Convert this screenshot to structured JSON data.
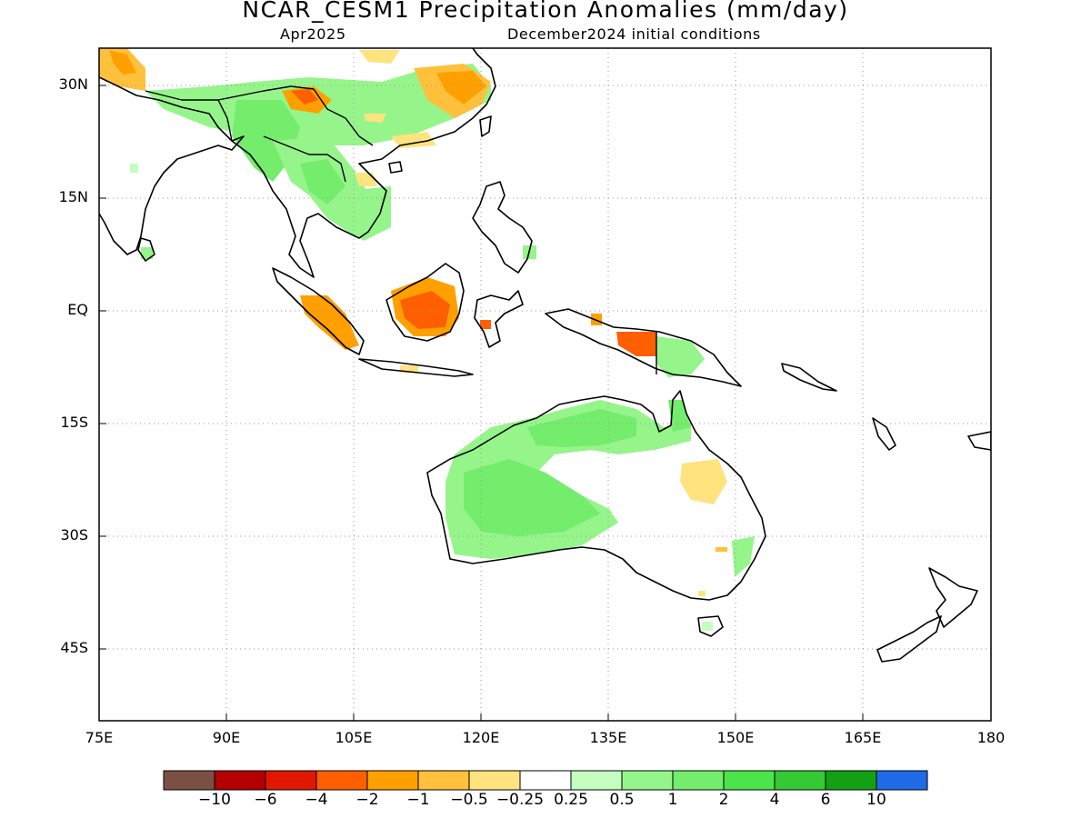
{
  "title": "NCAR_CESM1 Precipitation Anomalies (mm/day)",
  "subtitle_left": "Apr2025",
  "subtitle_right": "December2024 initial conditions",
  "lat_labels": [
    "30N",
    "15N",
    "EQ",
    "15S",
    "30S",
    "45S"
  ],
  "lon_labels": [
    "75E",
    "90E",
    "105E",
    "120E",
    "135E",
    "150E",
    "165E",
    "180"
  ],
  "colorbar": {
    "colors": [
      "#7b5044",
      "#b40000",
      "#e11800",
      "#ff5f00",
      "#ffa000",
      "#ffc03c",
      "#ffe37f",
      "#ffffff",
      "#c4ffbf",
      "#95f58a",
      "#74ec6c",
      "#4be54b",
      "#35c934",
      "#13a113",
      "#1f6ae6"
    ],
    "labels": [
      "−10",
      "−6",
      "−4",
      "−2",
      "−1",
      "−0.5",
      "−0.25",
      "0.25",
      "0.5",
      "1",
      "2",
      "4",
      "6",
      "10"
    ]
  },
  "colors": {
    "coast": "#000000",
    "grid": "#9a9a9a",
    "frame": "#000000"
  }
}
